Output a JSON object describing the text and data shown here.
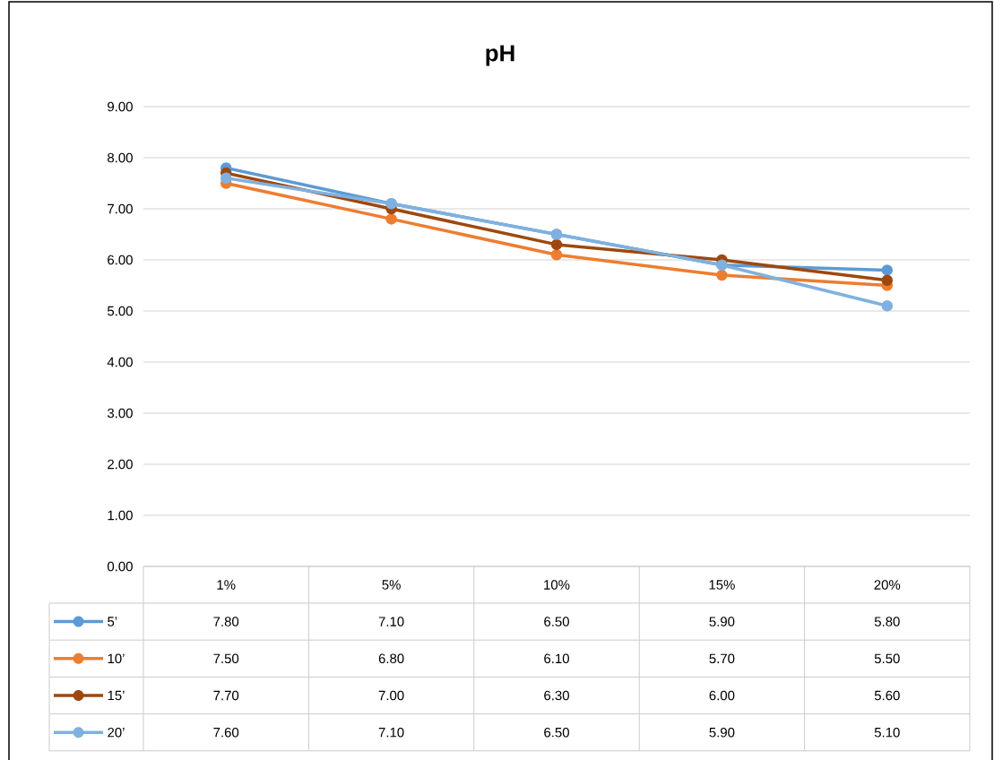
{
  "chart_data": {
    "type": "line",
    "title": "pH",
    "categories": [
      "1%",
      "5%",
      "10%",
      "15%",
      "20%"
    ],
    "ylim": [
      0,
      9
    ],
    "yticks": [
      {
        "value": 0,
        "label": "0.00"
      },
      {
        "value": 1,
        "label": "1.00"
      },
      {
        "value": 2,
        "label": "2.00"
      },
      {
        "value": 3,
        "label": "3.00"
      },
      {
        "value": 4,
        "label": "4.00"
      },
      {
        "value": 5,
        "label": "5.00"
      },
      {
        "value": 6,
        "label": "6.00"
      },
      {
        "value": 7,
        "label": "7.00"
      },
      {
        "value": 8,
        "label": "8.00"
      },
      {
        "value": 9,
        "label": "9.00"
      }
    ],
    "grid": "y",
    "legend": "bottom",
    "marker": "circle",
    "line_style": "solid",
    "series": [
      {
        "name": "5’",
        "color": "#5b9bd5",
        "values": [
          7.8,
          7.1,
          6.5,
          5.9,
          5.8
        ],
        "value_labels": [
          "7.80",
          "7.10",
          "6.50",
          "5.90",
          "5.80"
        ]
      },
      {
        "name": "10’",
        "color": "#ed7d31",
        "values": [
          7.5,
          6.8,
          6.1,
          5.7,
          5.5
        ],
        "value_labels": [
          "7.50",
          "6.80",
          "6.10",
          "5.70",
          "5.50"
        ]
      },
      {
        "name": "15’",
        "color": "#9e480e",
        "values": [
          7.7,
          7.0,
          6.3,
          6.0,
          5.6
        ],
        "value_labels": [
          "7.70",
          "7.00",
          "6.30",
          "6.00",
          "5.60"
        ]
      },
      {
        "name": "20’",
        "color": "#7fb1e0",
        "values": [
          7.6,
          7.1,
          6.5,
          5.9,
          5.1
        ],
        "value_labels": [
          "7.60",
          "7.10",
          "6.50",
          "5.90",
          "5.10"
        ]
      }
    ]
  }
}
